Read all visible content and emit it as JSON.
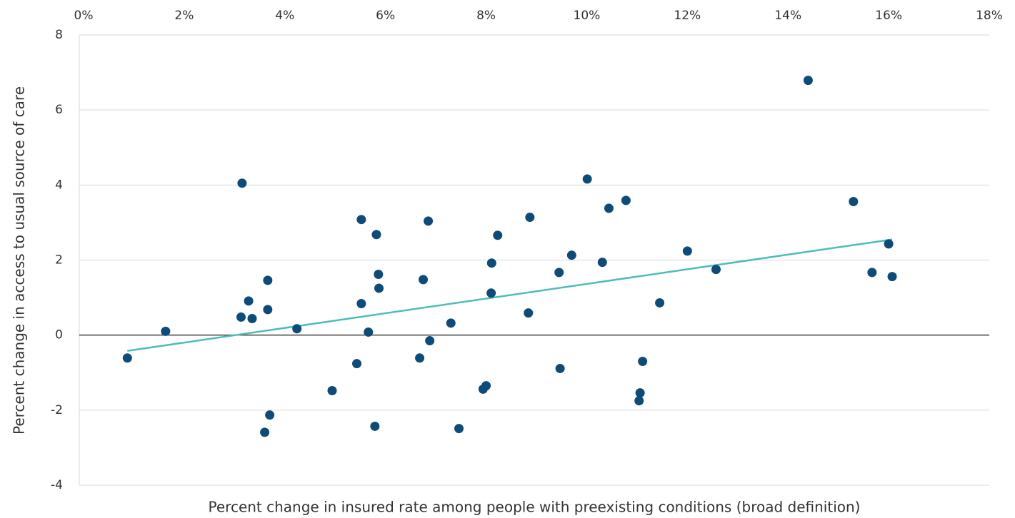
{
  "chart_data": {
    "type": "scatter",
    "x_label": "Percent change in insured rate among people with preexisting conditions (broad definition)",
    "y_label": "Percent change in access to usual source of care",
    "xlim": [
      0,
      18
    ],
    "xticks": [
      {
        "value": 0,
        "label": "0%"
      },
      {
        "value": 2,
        "label": "2%"
      },
      {
        "value": 4,
        "label": "4%"
      },
      {
        "value": 6,
        "label": "6%"
      },
      {
        "value": 8,
        "label": "8%"
      },
      {
        "value": 10,
        "label": "10%"
      },
      {
        "value": 12,
        "label": "12%"
      },
      {
        "value": 14,
        "label": "14%"
      },
      {
        "value": 16,
        "label": "16%"
      },
      {
        "value": 18,
        "label": "18%"
      }
    ],
    "ylim": [
      -4,
      8
    ],
    "yticks": [
      -4,
      -2,
      0,
      2,
      4,
      6,
      8
    ],
    "grid": true,
    "color": "#0d4c7a",
    "x": [
      0.87,
      1.63,
      3.15,
      3.13,
      3.28,
      3.35,
      3.66,
      3.66,
      3.6,
      3.7,
      4.24,
      4.94,
      5.43,
      5.52,
      5.52,
      5.66,
      5.79,
      5.82,
      5.86,
      5.87,
      6.68,
      6.75,
      6.85,
      6.88,
      7.3,
      7.46,
      7.94,
      8.0,
      8.11,
      8.1,
      8.23,
      8.84,
      8.87,
      9.45,
      9.47,
      9.7,
      10.01,
      10.31,
      10.44,
      10.78,
      11.04,
      11.06,
      11.11,
      11.45,
      12.0,
      12.57,
      14.4,
      15.3,
      15.67,
      16.0,
      16.07
    ],
    "values": [
      -0.61,
      0.1,
      4.05,
      0.48,
      0.91,
      0.44,
      1.46,
      0.68,
      -2.59,
      -2.13,
      0.17,
      -1.48,
      -0.76,
      3.08,
      0.84,
      0.08,
      -2.43,
      2.68,
      1.62,
      1.25,
      -0.61,
      1.48,
      3.04,
      -0.15,
      0.32,
      -2.49,
      -1.44,
      -1.35,
      1.92,
      1.12,
      2.66,
      0.59,
      3.14,
      1.67,
      -0.89,
      2.13,
      4.16,
      1.94,
      3.38,
      3.59,
      -1.75,
      -1.54,
      -0.7,
      0.86,
      2.24,
      1.75,
      6.79,
      3.56,
      1.67,
      2.43,
      1.56
    ],
    "trendline": {
      "x": [
        0.87,
        16.07
      ],
      "y": [
        -0.42,
        2.55
      ],
      "color": "#4dbdb8"
    }
  }
}
